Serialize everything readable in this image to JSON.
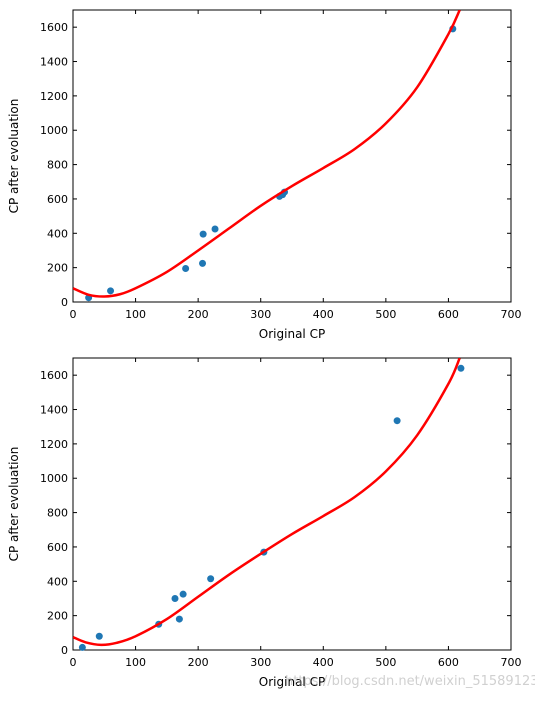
{
  "colors": {
    "points": "#1f77b4",
    "curve": "#ff0000",
    "axes": "#000000"
  },
  "watermark": "https://blog.csdn.net/weixin_51589123",
  "chart_data": [
    {
      "type": "scatter",
      "title": "",
      "xlabel": "Original CP",
      "ylabel": "CP after evoluation",
      "xlim": [
        0,
        700
      ],
      "ylim": [
        0,
        1700
      ],
      "xticks": [
        0,
        100,
        200,
        300,
        400,
        500,
        600,
        700
      ],
      "yticks": [
        0,
        200,
        400,
        600,
        800,
        1000,
        1200,
        1400,
        1600
      ],
      "grid": false,
      "points": [
        {
          "x": 25,
          "y": 25
        },
        {
          "x": 60,
          "y": 65
        },
        {
          "x": 180,
          "y": 195
        },
        {
          "x": 207,
          "y": 225
        },
        {
          "x": 208,
          "y": 395
        },
        {
          "x": 227,
          "y": 425
        },
        {
          "x": 330,
          "y": 615
        },
        {
          "x": 335,
          "y": 625
        },
        {
          "x": 338,
          "y": 640
        },
        {
          "x": 607,
          "y": 1590
        }
      ],
      "curve": [
        {
          "x": 0,
          "y": 80
        },
        {
          "x": 25,
          "y": 42
        },
        {
          "x": 50,
          "y": 32
        },
        {
          "x": 75,
          "y": 45
        },
        {
          "x": 100,
          "y": 80
        },
        {
          "x": 150,
          "y": 175
        },
        {
          "x": 200,
          "y": 300
        },
        {
          "x": 250,
          "y": 430
        },
        {
          "x": 300,
          "y": 560
        },
        {
          "x": 350,
          "y": 675
        },
        {
          "x": 400,
          "y": 780
        },
        {
          "x": 450,
          "y": 890
        },
        {
          "x": 500,
          "y": 1040
        },
        {
          "x": 550,
          "y": 1250
        },
        {
          "x": 600,
          "y": 1560
        },
        {
          "x": 618,
          "y": 1700
        }
      ]
    },
    {
      "type": "scatter",
      "title": "",
      "xlabel": "Original CP",
      "ylabel": "CP after evoluation",
      "xlim": [
        0,
        700
      ],
      "ylim": [
        0,
        1700
      ],
      "xticks": [
        0,
        100,
        200,
        300,
        400,
        500,
        600,
        700
      ],
      "yticks": [
        0,
        200,
        400,
        600,
        800,
        1000,
        1200,
        1400,
        1600
      ],
      "grid": false,
      "points": [
        {
          "x": 15,
          "y": 15
        },
        {
          "x": 42,
          "y": 80
        },
        {
          "x": 137,
          "y": 150
        },
        {
          "x": 163,
          "y": 300
        },
        {
          "x": 170,
          "y": 180
        },
        {
          "x": 176,
          "y": 325
        },
        {
          "x": 220,
          "y": 415
        },
        {
          "x": 305,
          "y": 570
        },
        {
          "x": 518,
          "y": 1335
        },
        {
          "x": 620,
          "y": 1640
        }
      ],
      "curve": [
        {
          "x": 0,
          "y": 75
        },
        {
          "x": 20,
          "y": 45
        },
        {
          "x": 45,
          "y": 30
        },
        {
          "x": 70,
          "y": 42
        },
        {
          "x": 100,
          "y": 80
        },
        {
          "x": 150,
          "y": 180
        },
        {
          "x": 200,
          "y": 310
        },
        {
          "x": 250,
          "y": 440
        },
        {
          "x": 300,
          "y": 560
        },
        {
          "x": 350,
          "y": 675
        },
        {
          "x": 400,
          "y": 780
        },
        {
          "x": 450,
          "y": 890
        },
        {
          "x": 500,
          "y": 1040
        },
        {
          "x": 550,
          "y": 1250
        },
        {
          "x": 600,
          "y": 1550
        },
        {
          "x": 618,
          "y": 1700
        }
      ]
    }
  ]
}
